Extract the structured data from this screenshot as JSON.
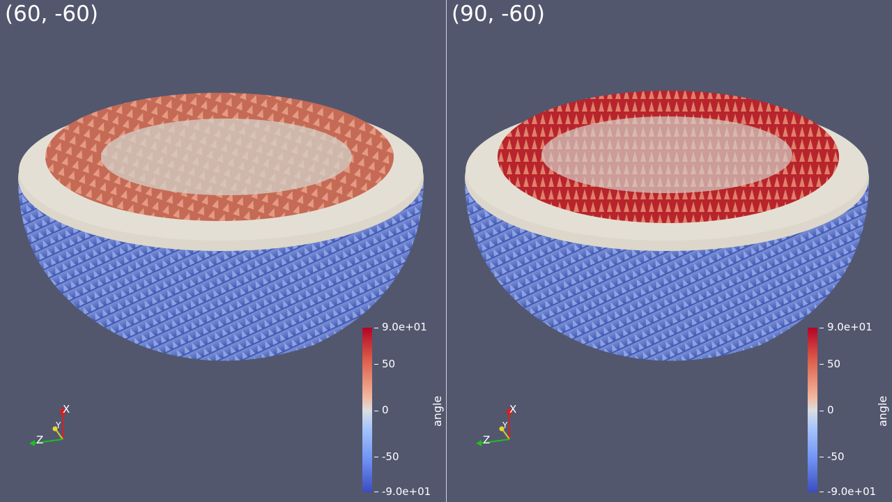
{
  "views": [
    {
      "label": "(60, -60)"
    },
    {
      "label": "(90, -60)"
    }
  ],
  "colorbar": {
    "title": "angle",
    "ticks": [
      "9.0e+01",
      "50",
      "0",
      "-50",
      "-9.0e+01"
    ],
    "colors": {
      "max": "#b40426",
      "mid": "#dcdddd",
      "min": "#3b4cc0"
    }
  },
  "axes": {
    "x": "X",
    "y": "Y",
    "z": "Z"
  },
  "colors": {
    "background": "#52576e",
    "shell_top": "#ddd7cb",
    "arrow_blue": "#5673c8",
    "arrow_red_left": "#d36a52",
    "arrow_red_right": "#c0282e"
  }
}
